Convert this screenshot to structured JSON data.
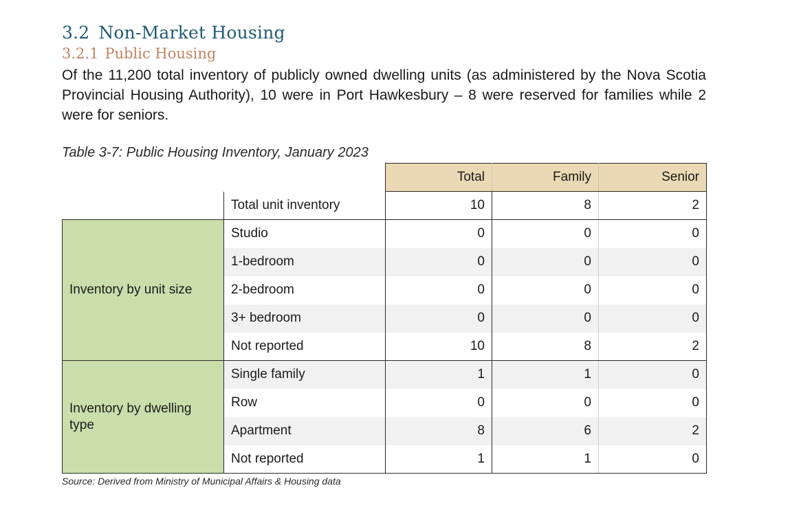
{
  "section": {
    "number": "3.2",
    "title": "Non-Market Housing"
  },
  "subsection": {
    "number": "3.2.1",
    "title": "Public Housing"
  },
  "paragraph": "Of the 11,200 total inventory of publicly owned dwelling units (as administered by the Nova Scotia Provincial Housing Authority), 10 were in Port Hawkesbury – 8 were reserved for families while 2 were for seniors.",
  "table": {
    "caption": "Table 3-7: Public Housing Inventory, January 2023",
    "headers": [
      "Total",
      "Family",
      "Senior"
    ],
    "total_row": {
      "label": "Total unit inventory",
      "values": [
        "10",
        "8",
        "2"
      ]
    },
    "groups": [
      {
        "label": "Inventory by unit size",
        "rows": [
          {
            "label": "Studio",
            "values": [
              "0",
              "0",
              "0"
            ]
          },
          {
            "label": "1-bedroom",
            "values": [
              "0",
              "0",
              "0"
            ]
          },
          {
            "label": "2-bedroom",
            "values": [
              "0",
              "0",
              "0"
            ]
          },
          {
            "label": "3+ bedroom",
            "values": [
              "0",
              "0",
              "0"
            ]
          },
          {
            "label": "Not reported",
            "values": [
              "10",
              "8",
              "2"
            ]
          }
        ]
      },
      {
        "label": "Inventory by dwelling type",
        "rows": [
          {
            "label": "Single family",
            "values": [
              "1",
              "1",
              "0"
            ]
          },
          {
            "label": "Row",
            "values": [
              "0",
              "0",
              "0"
            ]
          },
          {
            "label": "Apartment",
            "values": [
              "8",
              "6",
              "2"
            ]
          },
          {
            "label": "Not reported",
            "values": [
              "1",
              "1",
              "0"
            ]
          }
        ]
      }
    ],
    "source": "Source: Derived from Ministry of Municipal Affairs & Housing data"
  },
  "colors": {
    "heading": "#1f5a73",
    "subheading": "#c08463",
    "header_fill": "#ead9b4",
    "group_fill": "#c9deab",
    "row_shade": "#f1f1f1"
  }
}
